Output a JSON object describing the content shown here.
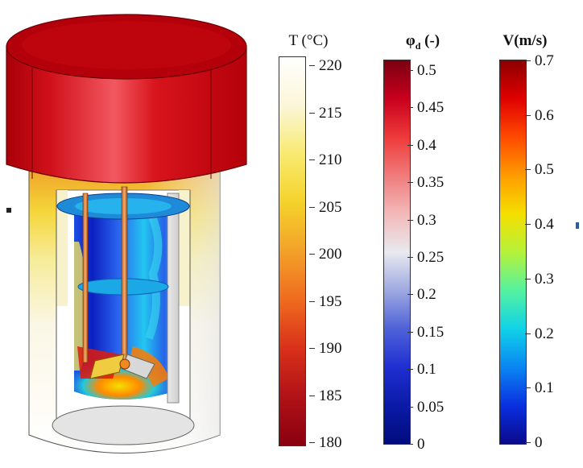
{
  "colorbars": [
    {
      "id": "temperature",
      "title": "T (°C)",
      "ticks": [
        "220",
        "215",
        "210",
        "205",
        "200",
        "195",
        "190",
        "185",
        "180"
      ],
      "range": [
        180,
        220
      ],
      "colormap": [
        "#ffffff",
        "#fbf6d8",
        "#f8ea70",
        "#f4d22a",
        "#f3a12a",
        "#ef6b1f",
        "#d9301a",
        "#b01217",
        "#8a0010"
      ]
    },
    {
      "id": "phase-fraction",
      "title_main": "φ",
      "title_sub": "d",
      "title_tail": " (-)",
      "ticks": [
        "0.5",
        "0.45",
        "0.4",
        "0.35",
        "0.3",
        "0.25",
        "0.2",
        "0.15",
        "0.1",
        "0.05",
        "0"
      ],
      "range": [
        0,
        0.5
      ],
      "colormap": [
        "#7a0011",
        "#c8001d",
        "#ee3a3a",
        "#f07b7b",
        "#f2b9b9",
        "#e9e9ef",
        "#9ea8e0",
        "#4e62d8",
        "#1f2fd1",
        "#0a1aa6",
        "#000c7d"
      ]
    },
    {
      "id": "velocity",
      "title": "V(m/s)",
      "ticks": [
        "0.7",
        "0.6",
        "0.5",
        "0.4",
        "0.3",
        "0.2",
        "0.1",
        "0"
      ],
      "range": [
        0,
        0.7
      ],
      "colormap": [
        "#8c0000",
        "#e00000",
        "#ff4a00",
        "#ff9b00",
        "#f5df00",
        "#b5f23a",
        "#55f2a0",
        "#10d2e8",
        "#0a86f2",
        "#0a2fe0",
        "#0a0a8a"
      ]
    }
  ]
}
